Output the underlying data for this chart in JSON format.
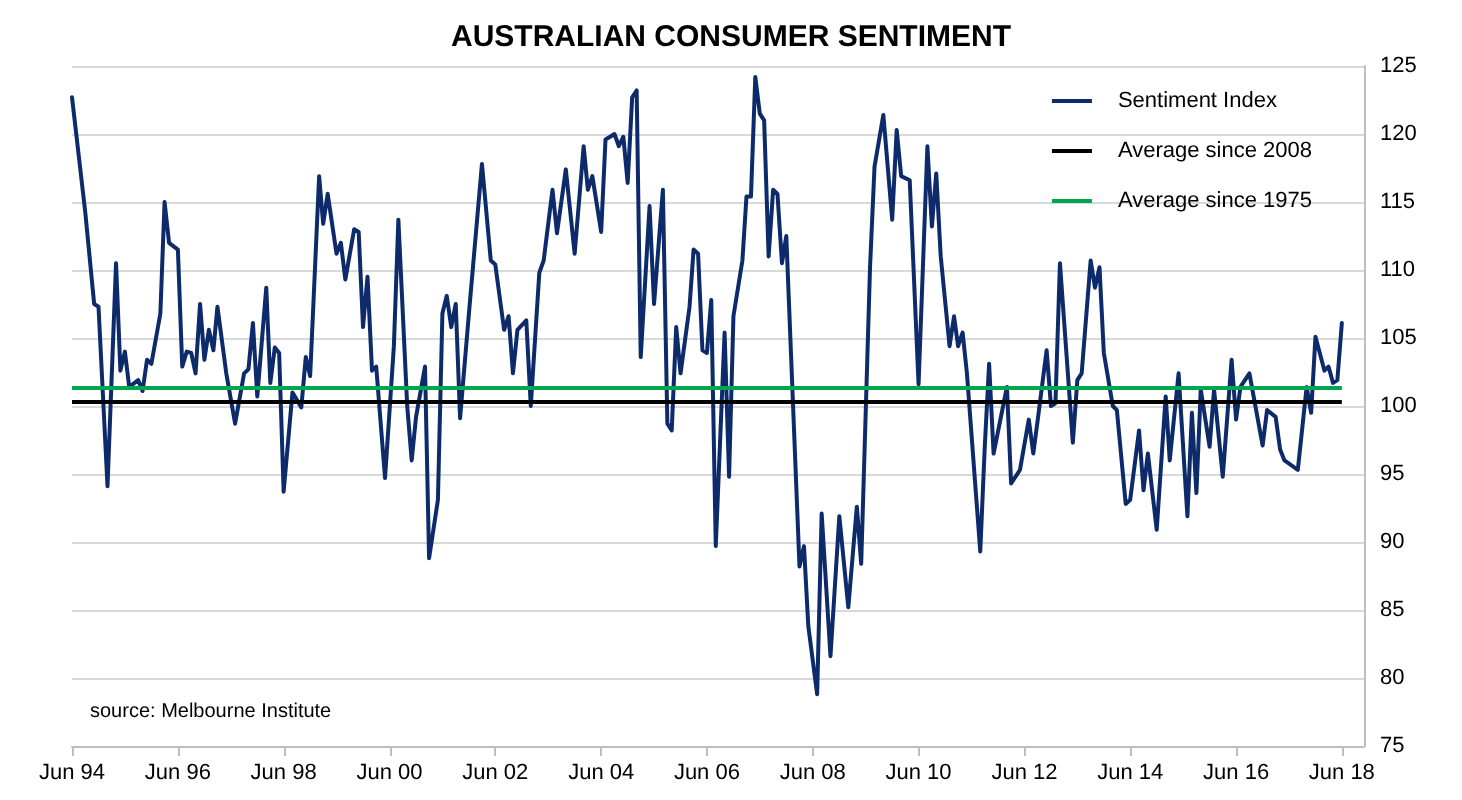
{
  "chart_data": {
    "type": "line",
    "title": "AUSTRALIAN CONSUMER SENTIMENT",
    "annotations": [
      "source: Melbourne Institute"
    ],
    "x": [
      "1994-06",
      "1994-09",
      "1994-11",
      "1994-12",
      "1995-02",
      "1995-04",
      "1995-05",
      "1995-06",
      "1995-07",
      "1995-09",
      "1995-10",
      "1995-11",
      "1995-12",
      "1996-02",
      "1996-03",
      "1996-04",
      "1996-06",
      "1996-07",
      "1996-08",
      "1996-09",
      "1996-10",
      "1996-11",
      "1996-12",
      "1997-01",
      "1997-02",
      "1997-03",
      "1997-05",
      "1997-07",
      "1997-09",
      "1997-10",
      "1997-11",
      "1997-12",
      "1998-02",
      "1998-03",
      "1998-04",
      "1998-05",
      "1998-06",
      "1998-08",
      "1998-10",
      "1998-11",
      "1998-12",
      "1999-02",
      "1999-03",
      "1999-04",
      "1999-06",
      "1999-07",
      "1999-08",
      "1999-10",
      "1999-11",
      "1999-12",
      "2000-01",
      "2000-02",
      "2000-03",
      "2000-05",
      "2000-07",
      "2000-08",
      "2000-10",
      "2000-11",
      "2000-12",
      "2001-02",
      "2001-03",
      "2001-05",
      "2001-06",
      "2001-07",
      "2001-08",
      "2001-09",
      "2001-10",
      "2001-12",
      "2002-03",
      "2002-05",
      "2002-06",
      "2002-08",
      "2002-09",
      "2002-10",
      "2002-11",
      "2003-01",
      "2003-02",
      "2003-04",
      "2003-05",
      "2003-07",
      "2003-08",
      "2003-10",
      "2003-12",
      "2004-02",
      "2004-03",
      "2004-04",
      "2004-06",
      "2004-07",
      "2004-09",
      "2004-10",
      "2004-11",
      "2004-12",
      "2005-01",
      "2005-02",
      "2005-03",
      "2005-05",
      "2005-06",
      "2005-08",
      "2005-09",
      "2005-10",
      "2005-11",
      "2005-12",
      "2006-02",
      "2006-03",
      "2006-04",
      "2006-05",
      "2006-06",
      "2006-07",
      "2006-08",
      "2006-10",
      "2006-11",
      "2006-12",
      "2007-02",
      "2007-03",
      "2007-04",
      "2007-05",
      "2007-06",
      "2007-07",
      "2007-08",
      "2007-09",
      "2007-10",
      "2007-11",
      "2007-12",
      "2008-03",
      "2008-04",
      "2008-05",
      "2008-07",
      "2008-08",
      "2008-10",
      "2008-12",
      "2009-02",
      "2009-04",
      "2009-05",
      "2009-07",
      "2009-08",
      "2009-10",
      "2009-12",
      "2010-01",
      "2010-02",
      "2010-04",
      "2010-06",
      "2010-08",
      "2010-09",
      "2010-10",
      "2010-11",
      "2011-01",
      "2011-02",
      "2011-03",
      "2011-04",
      "2011-05",
      "2011-08",
      "2011-09",
      "2011-10",
      "2011-11",
      "2012-02",
      "2012-03",
      "2012-05",
      "2012-07",
      "2012-08",
      "2012-09",
      "2012-11",
      "2012-12",
      "2013-01",
      "2013-02",
      "2013-05",
      "2013-06",
      "2013-07",
      "2013-09",
      "2013-10",
      "2013-11",
      "2013-12",
      "2014-02",
      "2014-03",
      "2014-05",
      "2014-06",
      "2014-08",
      "2014-09",
      "2014-10",
      "2014-12",
      "2015-02",
      "2015-03",
      "2015-05",
      "2015-07",
      "2015-08",
      "2015-09",
      "2015-10",
      "2015-12",
      "2016-01",
      "2016-03",
      "2016-05",
      "2016-06",
      "2016-07",
      "2016-09",
      "2016-12",
      "2017-01",
      "2017-03",
      "2017-04",
      "2017-05",
      "2017-08",
      "2017-10",
      "2017-11",
      "2017-12",
      "2018-02",
      "2018-03",
      "2018-04",
      "2018-05",
      "2018-06"
    ],
    "series": [
      {
        "name": "Sentiment Index",
        "color": "#0d2b6b",
        "values": [
          122.7,
          114.2,
          107.5,
          107.3,
          94.1,
          110.5,
          102.6,
          104,
          101.4,
          101.9,
          101.1,
          103.4,
          103.1,
          106.8,
          115,
          112,
          111.5,
          102.9,
          104,
          103.9,
          102.4,
          107.5,
          103.4,
          105.6,
          104.1,
          107.3,
          102.4,
          98.7,
          102.4,
          102.7,
          106.1,
          100.7,
          108.7,
          101.7,
          104.3,
          103.9,
          93.7,
          101,
          99.9,
          103.6,
          102.2,
          116.9,
          113.4,
          115.6,
          111.2,
          112,
          109.3,
          113,
          112.8,
          105.8,
          109.5,
          102.6,
          102.9,
          94.7,
          104.4,
          113.7,
          100,
          96,
          99.2,
          102.9,
          88.8,
          93.1,
          106.8,
          108.1,
          105.8,
          107.5,
          99.1,
          106.8,
          117.8,
          110.7,
          110.4,
          105.6,
          106.6,
          102.4,
          105.6,
          106.3,
          100,
          109.8,
          110.7,
          115.9,
          112.7,
          117.4,
          111.2,
          119.1,
          115.9,
          116.9,
          112.8,
          119.6,
          120,
          119.1,
          119.8,
          116.4,
          122.7,
          123.2,
          103.6,
          114.7,
          107.5,
          115.9,
          98.7,
          98.2,
          105.8,
          102.4,
          107.3,
          111.5,
          111.2,
          104.1,
          103.9,
          107.8,
          89.7,
          105.4,
          94.8,
          106.6,
          110.7,
          115.4,
          115.4,
          124.2,
          121.5,
          121,
          111,
          115.9,
          115.6,
          110.5,
          112.5,
          88.2,
          89.7,
          83.8,
          78.8,
          92.1,
          81.6,
          91.9,
          85.2,
          92.6,
          88.4,
          110.2,
          117.6,
          121.4,
          113.7,
          120.3,
          116.9,
          116.6,
          101.6,
          119.1,
          113.2,
          117.1,
          111,
          104.4,
          106.6,
          104.4,
          105.4,
          102.4,
          89.3,
          97,
          103.1,
          96.5,
          101.4,
          94.3,
          95.3,
          99,
          96.5,
          99,
          104.1,
          100,
          100.2,
          110.5,
          97.3,
          101.9,
          102.4,
          110.7,
          108.7,
          110.2,
          103.9,
          100,
          99.7,
          92.8,
          93.1,
          98.2,
          93.8,
          96.5,
          90.9,
          100.7,
          96,
          102.4,
          91.9,
          99.5,
          93.6,
          101.2,
          97,
          101.2,
          94.8,
          103.4,
          99,
          101.4,
          102.4,
          97.1,
          99.7,
          99.2,
          96.8,
          96,
          95.3,
          101.4,
          99.5,
          105.1,
          102.6,
          102.9,
          101.7,
          101.9,
          106.1
        ]
      }
    ],
    "ref_lines": [
      {
        "axis": "y",
        "value": 100.4,
        "label": "Average since 2008",
        "color": "#000000"
      },
      {
        "axis": "y",
        "value": 101.3,
        "label": "Average since 1975",
        "color": "#00a651"
      }
    ],
    "xlim": [
      "1994-06",
      "2018-11"
    ],
    "xticks": [
      {
        "value": "1994-06",
        "label": "Jun 94"
      },
      {
        "value": "1996-06",
        "label": "Jun 96"
      },
      {
        "value": "1998-06",
        "label": "Jun 98"
      },
      {
        "value": "2000-06",
        "label": "Jun 00"
      },
      {
        "value": "2002-06",
        "label": "Jun 02"
      },
      {
        "value": "2004-06",
        "label": "Jun 04"
      },
      {
        "value": "2006-06",
        "label": "Jun 06"
      },
      {
        "value": "2008-06",
        "label": "Jun 08"
      },
      {
        "value": "2010-06",
        "label": "Jun 10"
      },
      {
        "value": "2012-06",
        "label": "Jun 12"
      },
      {
        "value": "2014-06",
        "label": "Jun 14"
      },
      {
        "value": "2016-06",
        "label": "Jun 16"
      },
      {
        "value": "2018-06",
        "label": "Jun 18"
      }
    ],
    "ylim": [
      75,
      125
    ],
    "yticks": [
      75,
      80,
      85,
      90,
      95,
      100,
      105,
      110,
      115,
      120,
      125
    ],
    "grid": "y",
    "legend": "top right",
    "marker": "none",
    "line_style": "solid"
  }
}
